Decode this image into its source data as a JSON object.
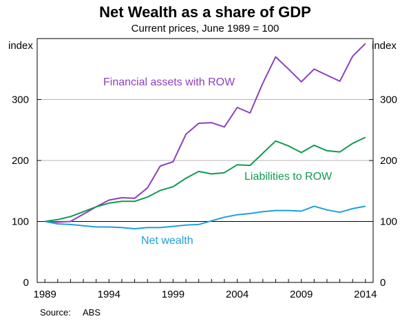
{
  "chart_data": {
    "type": "line",
    "title": "Net Wealth as a share of GDP",
    "subtitle": "Current prices, June 1989 = 100",
    "ylabel_left": "index",
    "ylabel_right": "index",
    "ylim": [
      0,
      400
    ],
    "yticks": [
      0,
      100,
      200,
      300
    ],
    "xlim": [
      1988.4,
      2014.6
    ],
    "xticks": [
      1989,
      1994,
      1999,
      2004,
      2009,
      2014
    ],
    "grid": "horizontal at 100, 200, 300",
    "source": {
      "label": "Source:",
      "value": "ABS"
    },
    "x": [
      1989,
      1990,
      1991,
      1992,
      1993,
      1994,
      1995,
      1996,
      1997,
      1998,
      1999,
      2000,
      2001,
      2002,
      2003,
      2004,
      2005,
      2006,
      2007,
      2008,
      2009,
      2010,
      2011,
      2012,
      2013,
      2014
    ],
    "series": [
      {
        "name": "Financial assets with ROW",
        "color": "#8b3fbf",
        "values": [
          100,
          99,
          100,
          112,
          124,
          135,
          139,
          138,
          155,
          191,
          198,
          243,
          261,
          262,
          255,
          287,
          278,
          327,
          370,
          350,
          329,
          350,
          340,
          330,
          371,
          392
        ]
      },
      {
        "name": "Liabilities to ROW",
        "color": "#0e9a4f",
        "values": [
          100,
          103,
          108,
          116,
          124,
          130,
          133,
          133,
          140,
          151,
          157,
          171,
          182,
          178,
          180,
          193,
          192,
          212,
          232,
          224,
          213,
          225,
          216,
          214,
          228,
          238
        ]
      },
      {
        "name": "Net wealth",
        "color": "#1c9fd8",
        "values": [
          100,
          96,
          95,
          93,
          91,
          91,
          90,
          88,
          90,
          90,
          92,
          94,
          95,
          101,
          107,
          111,
          113,
          116,
          118,
          118,
          117,
          125,
          119,
          115,
          121,
          125
        ]
      }
    ]
  }
}
